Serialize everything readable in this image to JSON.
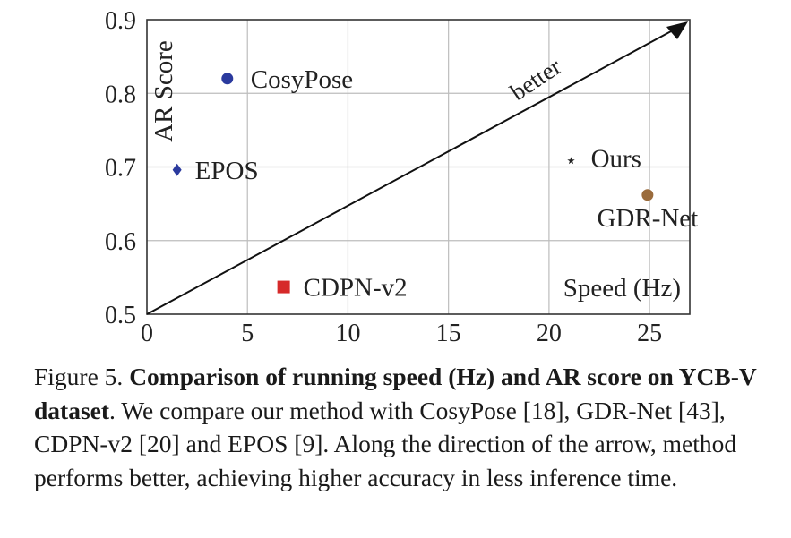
{
  "chart_data": {
    "type": "scatter",
    "xlabel": "Speed (Hz)",
    "ylabel": "AR Score",
    "xlim": [
      0,
      27
    ],
    "ylim": [
      0.5,
      0.9
    ],
    "xticks": [
      "0",
      "5",
      "10",
      "15",
      "20",
      "25"
    ],
    "yticks": [
      "0.5",
      "0.6",
      "0.7",
      "0.8",
      "0.9"
    ],
    "grid": true,
    "arrow_label": "better",
    "points": [
      {
        "name": "CosyPose",
        "x": 4.0,
        "y": 0.82,
        "marker": "circle",
        "color": "#2b3a9e"
      },
      {
        "name": "EPOS",
        "x": 1.5,
        "y": 0.696,
        "marker": "diamond",
        "color": "#2b3a9e"
      },
      {
        "name": "CDPN-v2",
        "x": 6.8,
        "y": 0.537,
        "marker": "square",
        "color": "#d62a2a"
      },
      {
        "name": "GDR-Net",
        "x": 24.9,
        "y": 0.662,
        "marker": "circle",
        "color": "#9a6b3c"
      },
      {
        "name": "Ours",
        "x": 21.1,
        "y": 0.712,
        "marker": "star",
        "color": "#333333"
      }
    ]
  },
  "caption": {
    "label": "Figure 5.",
    "bold": "Comparison of running speed (Hz) and AR score on YCB-V dataset",
    "text": ". We compare our method with CosyPose [18], GDR-Net [43], CDPN-v2 [20] and EPOS [9]. Along the direction of the arrow, method performs better, achieving higher accuracy in less inference time."
  }
}
